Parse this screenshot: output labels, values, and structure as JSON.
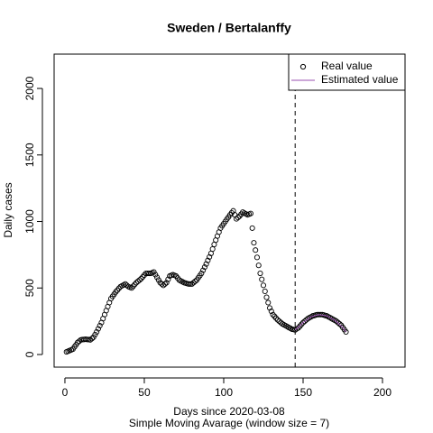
{
  "chart_data": {
    "type": "scatter",
    "title": "Sweden / Bertalanffy",
    "x_label": "Days since 2020-03-08",
    "subtitle": "Simple Moving Avarage (window size = 7)",
    "y_label": "Daily cases",
    "xlim": [
      -6.8,
      214.2
    ],
    "ylim": [
      -95,
      2258
    ],
    "xticks": [
      0,
      50,
      100,
      150,
      200
    ],
    "yticks": [
      0,
      500,
      1000,
      1500,
      2000
    ],
    "vline": 145,
    "legend": "topright",
    "series": [
      {
        "name": "Real value",
        "color": "#000000",
        "style": "points",
        "x": [
          1,
          2,
          3,
          4,
          5,
          6,
          7,
          8,
          9,
          10,
          11,
          12,
          13,
          14,
          15,
          16,
          17,
          18,
          19,
          20,
          21,
          22,
          23,
          24,
          25,
          26,
          27,
          28,
          29,
          30,
          31,
          32,
          33,
          34,
          35,
          36,
          37,
          38,
          39,
          40,
          41,
          42,
          43,
          44,
          45,
          46,
          47,
          48,
          49,
          50,
          51,
          52,
          53,
          54,
          55,
          56,
          57,
          58,
          59,
          60,
          61,
          62,
          63,
          64,
          65,
          66,
          67,
          68,
          69,
          70,
          71,
          72,
          73,
          74,
          75,
          76,
          77,
          78,
          79,
          80,
          81,
          82,
          83,
          84,
          85,
          86,
          87,
          88,
          89,
          90,
          91,
          92,
          93,
          94,
          95,
          96,
          97,
          98,
          99,
          100,
          101,
          102,
          103,
          104,
          105,
          106,
          107,
          108,
          109,
          110,
          111,
          112,
          113,
          114,
          115,
          116,
          117,
          118,
          119,
          120,
          121,
          122,
          123,
          124,
          125,
          126,
          127,
          128,
          129,
          130,
          131,
          132,
          133,
          134,
          135,
          136,
          137,
          138,
          139,
          140,
          141,
          142,
          143,
          144,
          145,
          146,
          147,
          148,
          149,
          150,
          151,
          152,
          153,
          154,
          155,
          156,
          157,
          158,
          159,
          160,
          161,
          162,
          163,
          164,
          165,
          166,
          167,
          168,
          169,
          170,
          171,
          172,
          173,
          174,
          175,
          176,
          177
        ],
        "values": [
          20,
          25,
          30,
          35,
          40,
          57,
          73,
          90,
          100,
          110,
          112,
          113,
          115,
          113,
          112,
          110,
          120,
          130,
          150,
          170,
          193,
          217,
          240,
          270,
          300,
          330,
          360,
          390,
          420,
          437,
          453,
          470,
          483,
          497,
          510,
          517,
          523,
          530,
          520,
          510,
          505,
          500,
          513,
          527,
          540,
          550,
          560,
          570,
          583,
          597,
          610,
          610,
          610,
          610,
          615,
          620,
          600,
          580,
          560,
          540,
          530,
          520,
          530,
          540,
          565,
          590,
          595,
          600,
          595,
          590,
          575,
          560,
          553,
          547,
          540,
          537,
          533,
          530,
          530,
          530,
          540,
          550,
          560,
          577,
          593,
          610,
          633,
          657,
          680,
          707,
          733,
          760,
          793,
          827,
          860,
          890,
          920,
          950,
          967,
          983,
          1000,
          1017,
          1033,
          1050,
          1065,
          1080,
          1050,
          1020,
          1030,
          1040,
          1055,
          1070,
          1063,
          1057,
          1050,
          1055,
          1060,
          950,
          840,
          785,
          730,
          670,
          610,
          565,
          520,
          475,
          430,
          390,
          350,
          325,
          300,
          287,
          273,
          260,
          250,
          240,
          230,
          223,
          217,
          210,
          203,
          197,
          190,
          188,
          185,
          193,
          200,
          213,
          227,
          240,
          250,
          260,
          270,
          277,
          283,
          290,
          293,
          297,
          300,
          300,
          300,
          300,
          297,
          293,
          290,
          283,
          277,
          270,
          263,
          257,
          250,
          240,
          230,
          220,
          203,
          187,
          170
        ]
      },
      {
        "name": "Estimated value",
        "color": "#9a4fb0",
        "style": "line",
        "x": [
          145,
          150,
          155,
          160,
          165,
          170,
          175,
          177
        ],
        "values": [
          185,
          240,
          283,
          300,
          290,
          257,
          203,
          170
        ]
      }
    ]
  }
}
